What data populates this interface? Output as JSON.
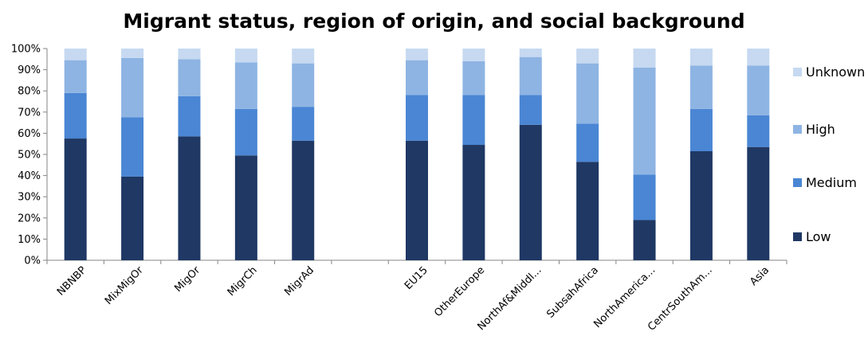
{
  "chart_data": {
    "type": "bar",
    "stacked": true,
    "title": "Migrant status,  region of origin, and social background",
    "xlabel": "",
    "ylabel": "",
    "ylim": [
      0,
      100
    ],
    "y_ticks": [
      "0%",
      "10%",
      "20%",
      "30%",
      "40%",
      "50%",
      "60%",
      "70%",
      "80%",
      "90%",
      "100%"
    ],
    "grid": false,
    "legend_position": "right",
    "categories": [
      "NBNBP",
      "MixMigOr",
      "MigOr",
      "MigrCh",
      "MigrAd",
      "",
      "EU15",
      "OtherEurope",
      "NorthAf&Middl...",
      "SubsahAfrica",
      "NorthAmerica...",
      "CentrSouthAm...",
      "Asia"
    ],
    "series": [
      {
        "name": "Low",
        "color": "#1f3864",
        "values": [
          57.5,
          39.5,
          58.5,
          49.5,
          56.5,
          null,
          56.5,
          54.5,
          64.0,
          46.5,
          19.0,
          51.5,
          53.5
        ]
      },
      {
        "name": "Medium",
        "color": "#4a86d4",
        "values": [
          21.5,
          28.0,
          19.0,
          22.0,
          16.0,
          null,
          21.5,
          23.5,
          14.0,
          18.0,
          21.5,
          20.0,
          15.0
        ]
      },
      {
        "name": "High",
        "color": "#8eb4e3",
        "values": [
          15.5,
          28.0,
          17.5,
          22.0,
          20.5,
          null,
          16.5,
          16.0,
          18.0,
          28.5,
          50.5,
          20.5,
          23.5
        ]
      },
      {
        "name": "Unknown",
        "color": "#c6d9f1",
        "values": [
          5.5,
          4.5,
          5.0,
          6.5,
          7.0,
          null,
          5.5,
          6.0,
          4.0,
          7.0,
          9.0,
          8.0,
          8.0
        ]
      }
    ]
  }
}
